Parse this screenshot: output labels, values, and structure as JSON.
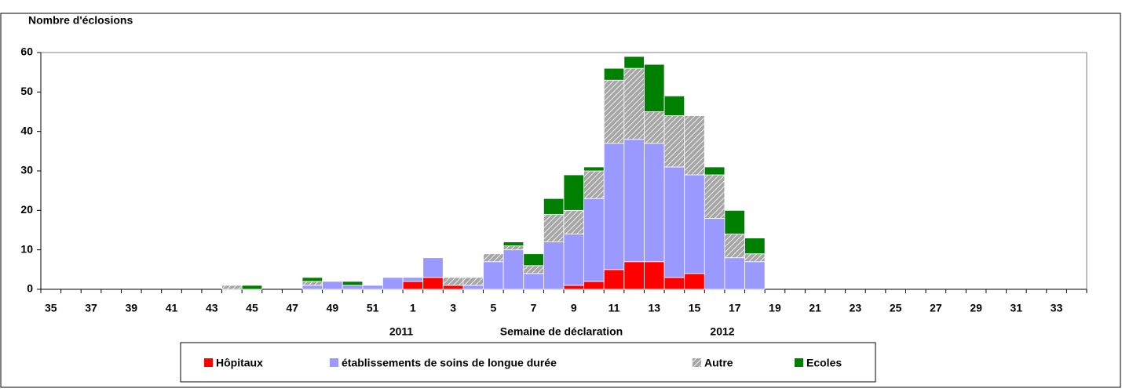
{
  "chart_data": {
    "type": "bar",
    "stacked": true,
    "y_label": "Nombre d'éclosions",
    "x_label": "Semaine de déclaration",
    "annotations": [
      "2011",
      "2012"
    ],
    "categories": [
      "35",
      null,
      "37",
      null,
      "39",
      null,
      "41",
      null,
      "43",
      null,
      "45",
      null,
      "47",
      null,
      "49",
      null,
      "51",
      null,
      "1",
      null,
      "3",
      null,
      "5",
      null,
      "7",
      null,
      "9",
      null,
      "11",
      null,
      "13",
      null,
      "15",
      null,
      "17",
      null,
      "19",
      null,
      "21",
      null,
      "23",
      null,
      "25",
      null,
      "27",
      null,
      "29",
      null,
      "31",
      null,
      "33",
      null
    ],
    "series": [
      {
        "name": "Hôpitaux",
        "color": "#ff0000",
        "values": [
          0,
          0,
          0,
          0,
          0,
          0,
          0,
          0,
          0,
          0,
          0,
          0,
          0,
          0,
          0,
          0,
          0,
          0,
          2,
          3,
          1,
          0,
          0,
          0,
          0,
          0,
          1,
          2,
          5,
          7,
          7,
          3,
          4,
          0,
          0,
          0,
          0,
          0,
          0,
          0,
          0,
          0,
          0,
          0,
          0,
          0,
          0,
          0,
          0,
          0,
          0,
          0
        ]
      },
      {
        "name": "établissements de soins de longue durée",
        "color": "#9999ff",
        "values": [
          0,
          0,
          0,
          0,
          0,
          0,
          0,
          0,
          0,
          0,
          0,
          0,
          0,
          1,
          2,
          1,
          1,
          3,
          1,
          5,
          0,
          1,
          7,
          10,
          4,
          12,
          13,
          21,
          32,
          31,
          30,
          28,
          25,
          18,
          8,
          7,
          0,
          0,
          0,
          0,
          0,
          0,
          0,
          0,
          0,
          0,
          0,
          0,
          0,
          0,
          0,
          0
        ]
      },
      {
        "name": "Autre",
        "color": "#a6a6a6",
        "hatched": true,
        "values": [
          0,
          0,
          0,
          0,
          0,
          0,
          0,
          0,
          0,
          1,
          0,
          0,
          0,
          1,
          0,
          0,
          0,
          0,
          0,
          0,
          2,
          2,
          2,
          1,
          2,
          7,
          6,
          7,
          16,
          18,
          8,
          13,
          15,
          11,
          6,
          2,
          0,
          0,
          0,
          0,
          0,
          0,
          0,
          0,
          0,
          0,
          0,
          0,
          0,
          0,
          0,
          0
        ]
      },
      {
        "name": "Ecoles",
        "color": "#008000",
        "values": [
          0,
          0,
          0,
          0,
          0,
          0,
          0,
          0,
          0,
          0,
          1,
          0,
          0,
          1,
          0,
          1,
          0,
          0,
          0,
          0,
          0,
          0,
          0,
          1,
          3,
          4,
          9,
          1,
          3,
          3,
          12,
          5,
          0,
          2,
          6,
          4,
          0,
          0,
          0,
          0,
          0,
          0,
          0,
          0,
          0,
          0,
          0,
          0,
          0,
          0,
          0,
          0
        ]
      }
    ],
    "ylim": [
      0,
      60
    ],
    "yticks": [
      0,
      10,
      20,
      30,
      40,
      50,
      60
    ],
    "grid": false
  }
}
